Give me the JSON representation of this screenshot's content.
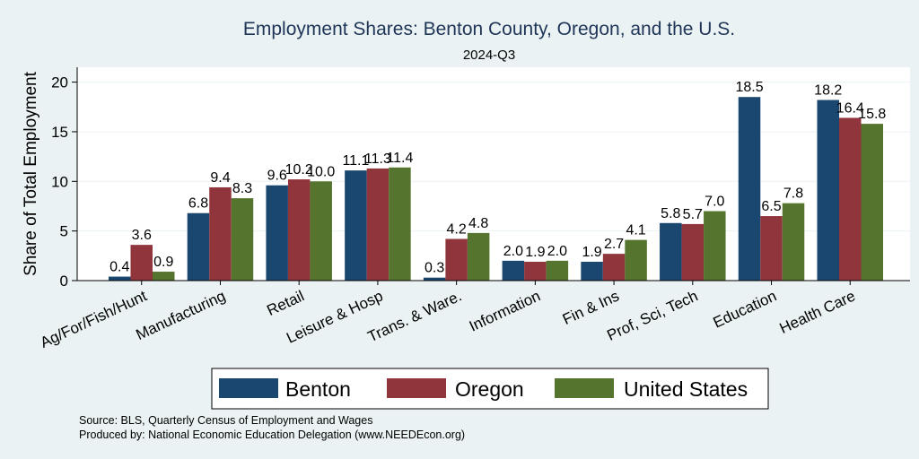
{
  "chart_data": {
    "type": "bar",
    "title": "Employment Shares: Benton County, Oregon, and the U.S.",
    "subtitle": "2024-Q3",
    "ylabel": "Share of Total Employment",
    "xlabel": "",
    "ylim": [
      0,
      21.5
    ],
    "yticks": [
      0,
      5,
      10,
      15,
      20
    ],
    "grid": true,
    "legend_position": "bottom",
    "categories": [
      "Ag/For/Fish/Hunt",
      "Manufacturing",
      "Retail",
      "Leisure & Hosp",
      "Trans. & Ware.",
      "Information",
      "Fin & Ins",
      "Prof, Sci, Tech",
      "Education",
      "Health Care"
    ],
    "series": [
      {
        "name": "Benton",
        "color": "#1a476f",
        "values": [
          0.4,
          6.8,
          9.6,
          11.1,
          0.3,
          2.0,
          1.9,
          5.8,
          18.5,
          18.2
        ],
        "labels": [
          "0.4",
          "6.8",
          "9.6",
          "11.1",
          "0.3",
          "2.0",
          "1.9",
          "5.8",
          "18.5",
          "18.2"
        ]
      },
      {
        "name": "Oregon",
        "color": "#90353b",
        "values": [
          3.6,
          9.4,
          10.2,
          11.3,
          4.2,
          1.9,
          2.7,
          5.7,
          6.5,
          16.4
        ],
        "labels": [
          "3.6",
          "9.4",
          "10.2",
          "11.3",
          "4.2",
          "1.9",
          "2.7",
          "5.7",
          "6.5",
          "16.4"
        ]
      },
      {
        "name": "United States",
        "color": "#55752f",
        "values": [
          0.9,
          8.3,
          10.0,
          11.4,
          4.8,
          2.0,
          4.1,
          7.0,
          7.8,
          15.8
        ],
        "labels": [
          "0.9",
          "8.3",
          "10.0",
          "11.4",
          "4.8",
          "2.0",
          "4.1",
          "7.0",
          "7.8",
          "15.8"
        ]
      }
    ]
  },
  "source_lines": [
    "Source: BLS, Quarterly Census of Employment and Wages",
    "Produced by: National Economic Education Delegation (www.NEEDEcon.org)"
  ]
}
